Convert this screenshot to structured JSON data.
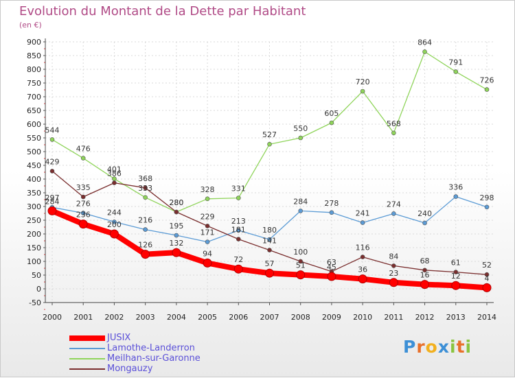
{
  "page": {
    "title": "Evolution du Montant de la Dette par Habitant",
    "subtitle": "(en €)",
    "logo": "Proxiti",
    "colors": {
      "title": "#b04a86",
      "legend_text": "#5a4fd8"
    }
  },
  "chart_data": {
    "type": "line",
    "title": "Evolution du Montant de la Dette par Habitant",
    "ylabel": "(en €)",
    "xlabel": "",
    "x": [
      "2000",
      "2001",
      "2002",
      "2003",
      "2004",
      "2005",
      "2006",
      "2007",
      "2008",
      "2009",
      "2010",
      "2011",
      "2012",
      "2013",
      "2014"
    ],
    "ylim": [
      -50,
      900
    ],
    "yticks": [
      -50,
      0,
      50,
      100,
      150,
      200,
      250,
      300,
      350,
      400,
      450,
      500,
      550,
      600,
      650,
      700,
      750,
      800,
      850,
      900
    ],
    "grid": true,
    "legend_position": "bottom-left",
    "series": [
      {
        "name": "JUSIX",
        "color": "#ff0000",
        "values": [
          284,
          236,
          200,
          126,
          132,
          94,
          72,
          57,
          51,
          45,
          36,
          23,
          16,
          12,
          4
        ]
      },
      {
        "name": "Lamothe-Landerron",
        "color": "#5b9bd5",
        "values": [
          297,
          276,
          244,
          216,
          195,
          171,
          213,
          180,
          284,
          278,
          241,
          274,
          240,
          336,
          298
        ]
      },
      {
        "name": "Meilhan-sur-Garonne",
        "color": "#8fd45a",
        "values": [
          544,
          476,
          401,
          333,
          280,
          328,
          331,
          527,
          550,
          605,
          720,
          568,
          864,
          791,
          726
        ]
      },
      {
        "name": "Mongauzy",
        "color": "#7a2e2e",
        "values": [
          429,
          335,
          386,
          368,
          280,
          229,
          181,
          141,
          100,
          63,
          116,
          84,
          68,
          61,
          52
        ]
      }
    ]
  }
}
